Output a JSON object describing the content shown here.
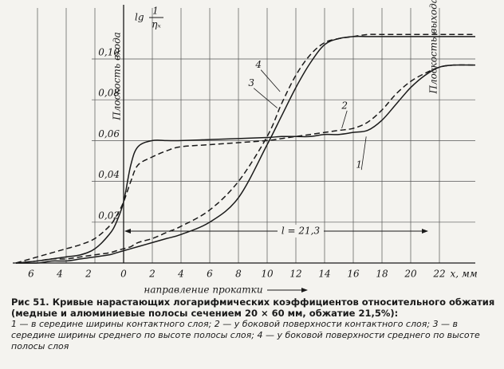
{
  "chart_data": {
    "type": "line",
    "y_label_prefix": "lg",
    "y_label_numerator": "1",
    "y_label_denominator": "ηₓ",
    "x_unit_label": "x, мм",
    "x_direction_label": "направление прокатки",
    "entry_plane_label": "Плоскость входа",
    "exit_plane_label": "Плоскость выхода",
    "length_label": "l = 21,3",
    "xlim": [
      -7.5,
      24.5
    ],
    "ylim": [
      0,
      0.125
    ],
    "xticks": [
      {
        "value": -6,
        "label": "6"
      },
      {
        "value": -4,
        "label": "4"
      },
      {
        "value": -2,
        "label": "2"
      },
      0,
      2,
      4,
      6,
      8,
      10,
      12,
      14,
      16,
      18,
      20,
      22
    ],
    "yticks": [
      {
        "value": 0.02,
        "label": "0,02"
      },
      {
        "value": 0.04,
        "label": "0,04"
      },
      {
        "value": 0.06,
        "label": "0,06"
      },
      {
        "value": 0.08,
        "label": "0,08"
      },
      {
        "value": 0.1,
        "label": "0,10"
      }
    ],
    "grid": true,
    "x": [
      -7.5,
      -6,
      -5,
      -4,
      -3,
      -2,
      -1,
      -0.5,
      0,
      0.5,
      1,
      2,
      3,
      4,
      6,
      8,
      10,
      11,
      12,
      13,
      14,
      15,
      16,
      17,
      18,
      19,
      20,
      21,
      22,
      23,
      24.5
    ],
    "series": [
      {
        "name": "1",
        "color": "#1a1a1a",
        "style": "solid",
        "values": [
          0,
          0.001,
          0.002,
          0.003,
          0.004,
          0.007,
          0.014,
          0.02,
          0.03,
          0.048,
          0.057,
          0.06,
          0.06,
          0.06,
          0.0605,
          0.061,
          0.0615,
          0.062,
          0.062,
          0.062,
          0.063,
          0.063,
          0.064,
          0.065,
          0.07,
          0.078,
          0.086,
          0.092,
          0.096,
          0.097,
          0.097
        ]
      },
      {
        "name": "2",
        "color": "#1a1a1a",
        "style": "dashed",
        "values": [
          0,
          0.003,
          0.005,
          0.007,
          0.009,
          0.012,
          0.018,
          0.023,
          0.03,
          0.04,
          0.048,
          0.052,
          0.055,
          0.057,
          0.058,
          0.059,
          0.06,
          0.061,
          0.062,
          0.063,
          0.064,
          0.065,
          0.066,
          0.069,
          0.075,
          0.083,
          0.089,
          0.093,
          0.096,
          0.097,
          0.097
        ]
      },
      {
        "name": "3",
        "color": "#1a1a1a",
        "style": "solid",
        "values": [
          0,
          0,
          0.001,
          0.001,
          0.002,
          0.003,
          0.004,
          0.005,
          0.006,
          0.007,
          0.008,
          0.01,
          0.012,
          0.014,
          0.02,
          0.032,
          0.058,
          0.072,
          0.086,
          0.098,
          0.107,
          0.11,
          0.111,
          0.111,
          0.111,
          0.111,
          0.111,
          0.111,
          0.111,
          0.111,
          0.111
        ]
      },
      {
        "name": "4",
        "color": "#1a1a1a",
        "style": "dashed",
        "values": [
          0,
          0.001,
          0.002,
          0.002,
          0.003,
          0.004,
          0.005,
          0.006,
          0.007,
          0.008,
          0.01,
          0.012,
          0.015,
          0.018,
          0.026,
          0.04,
          0.062,
          0.078,
          0.092,
          0.102,
          0.108,
          0.11,
          0.111,
          0.112,
          0.112,
          0.112,
          0.112,
          0.112,
          0.112,
          0.112,
          0.112
        ]
      }
    ]
  },
  "caption": {
    "figure": "Рис 51.",
    "text": "Кривые нарастающих логарифмических коэффициентов относительного обжатия (медные и алюминиевые полосы сечением 20 × 60 мм, обжатие 21,5%):",
    "items": [
      "1 — в середине ширины контактного слоя;",
      "2 — у боковой поверхности контактного слоя;",
      "3 — в середине ширины среднего по высоте полосы слоя;",
      "4 — у боковой поверхности среднего по высоте полосы слоя"
    ]
  }
}
